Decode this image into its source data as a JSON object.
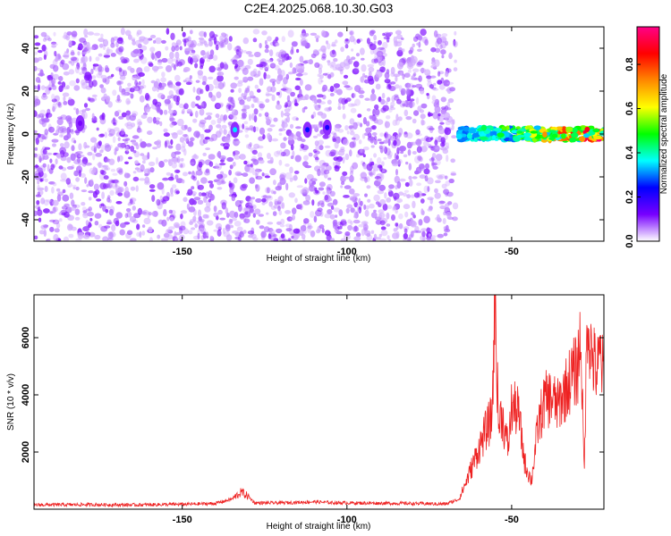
{
  "title": "C2E4.2025.068.10.30.G03",
  "chart_data": [
    {
      "type": "heatmap",
      "xlabel": "Height of straight line (km)",
      "ylabel": "Frequency (Hz)",
      "xlim": [
        -195,
        -22
      ],
      "ylim": [
        -50,
        50
      ],
      "x_ticks": [
        -150,
        -100,
        -50
      ],
      "y_ticks": [
        -40,
        -20,
        0,
        20,
        40
      ],
      "colorbar": {
        "label": "Normalized spectral amplitude",
        "range": [
          0,
          0.97
        ],
        "ticks": [
          "0.0",
          "0.2",
          "0.4",
          "0.6",
          "0.8"
        ],
        "colors": [
          "#ffffff",
          "#7700ff",
          "#0000ff",
          "#00ffff",
          "#00ff00",
          "#ffff00",
          "#ff8800",
          "#ff0000",
          "#ff0088"
        ]
      },
      "noise_region": {
        "x_from": -195,
        "x_to": -67,
        "freq_from": -50,
        "freq_to": 48,
        "amplitude": 0.06
      },
      "signal_track": {
        "x_from": -66,
        "x_to": -22,
        "center_freq": 0,
        "half_width_hz": 3,
        "amplitude_range": [
          0.25,
          0.95
        ]
      },
      "hot_spots": [
        {
          "x": -181,
          "freq": 5,
          "amplitude": 0.12
        },
        {
          "x": -134,
          "freq": 2,
          "amplitude": 0.35
        },
        {
          "x": -112,
          "freq": 2,
          "amplitude": 0.25
        },
        {
          "x": -106,
          "freq": 3,
          "amplitude": 0.22
        }
      ]
    },
    {
      "type": "line",
      "xlabel": "Height of straight line (km)",
      "ylabel": "SNR (10 * v/v)",
      "xlim": [
        -195,
        -22
      ],
      "ylim": [
        0,
        7500
      ],
      "x_ticks": [
        -150,
        -100,
        -50
      ],
      "y_ticks": [
        2000,
        4000,
        6000
      ],
      "series": [
        {
          "color": "#ee2222",
          "x": [
            -195,
            -180,
            -165,
            -150,
            -140,
            -135,
            -132,
            -130,
            -128,
            -120,
            -110,
            -105,
            -100,
            -90,
            -80,
            -70,
            -66,
            -64,
            -62,
            -60,
            -58,
            -56,
            -55,
            -54,
            -53,
            -52,
            -51,
            -50,
            -48,
            -46,
            -44,
            -42,
            -40,
            -38,
            -36,
            -34,
            -32,
            -30,
            -29,
            -28,
            -27,
            -26,
            -25,
            -24,
            -23,
            -22
          ],
          "y": [
            150,
            160,
            150,
            170,
            200,
            350,
            600,
            450,
            220,
            220,
            260,
            230,
            220,
            210,
            200,
            180,
            350,
            900,
            1500,
            2100,
            2700,
            3200,
            7500,
            2900,
            3400,
            2600,
            2200,
            3600,
            3400,
            1600,
            1000,
            2900,
            3800,
            3900,
            3600,
            4100,
            4600,
            4900,
            6200,
            1200,
            7000,
            5600,
            5100,
            4800,
            5400,
            4500
          ]
        }
      ]
    }
  ]
}
